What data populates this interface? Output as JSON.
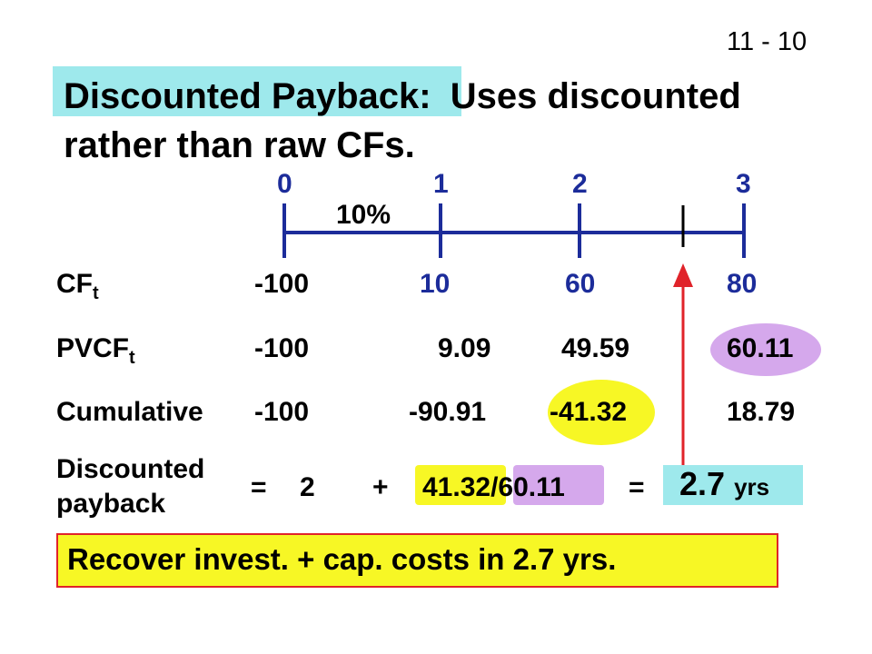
{
  "slide_number": "11 - 10",
  "title": {
    "highlight": "Discounted Payback:",
    "rest": "Uses discounted",
    "line2": "rather than raw CFs."
  },
  "timeline": {
    "periods": [
      "0",
      "1",
      "2",
      "3"
    ],
    "rate": "10%",
    "line_color": "#1c2c9a"
  },
  "rows": {
    "cf": {
      "label": "CF",
      "sub": "t",
      "values": [
        "-100",
        "10",
        "60",
        "80"
      ]
    },
    "pvcf": {
      "label": "PVCF",
      "sub": "t",
      "values": [
        "-100",
        "9.09",
        "49.59",
        "60.11"
      ]
    },
    "cumulative": {
      "label": "Cumulative",
      "values": [
        "-100",
        "-90.91",
        "-41.32",
        "18.79"
      ]
    }
  },
  "payback": {
    "label_line1": "Discounted",
    "label_line2": "payback",
    "eq1": "=",
    "years": "2",
    "plus": "+",
    "numerator": "41.32",
    "slash": "/",
    "denominator": "60.11",
    "eq2": "=",
    "result_num": "2.7",
    "result_unit": "yrs"
  },
  "conclusion": "Recover invest. + cap. costs in 2.7 yrs.",
  "colors": {
    "cyan_highlight": "#9ee9ec",
    "yellow_highlight": "#f7f725",
    "purple_highlight": "#d5a8ec",
    "red_arrow": "#e0232a",
    "blue_text": "#1c2c9a"
  }
}
